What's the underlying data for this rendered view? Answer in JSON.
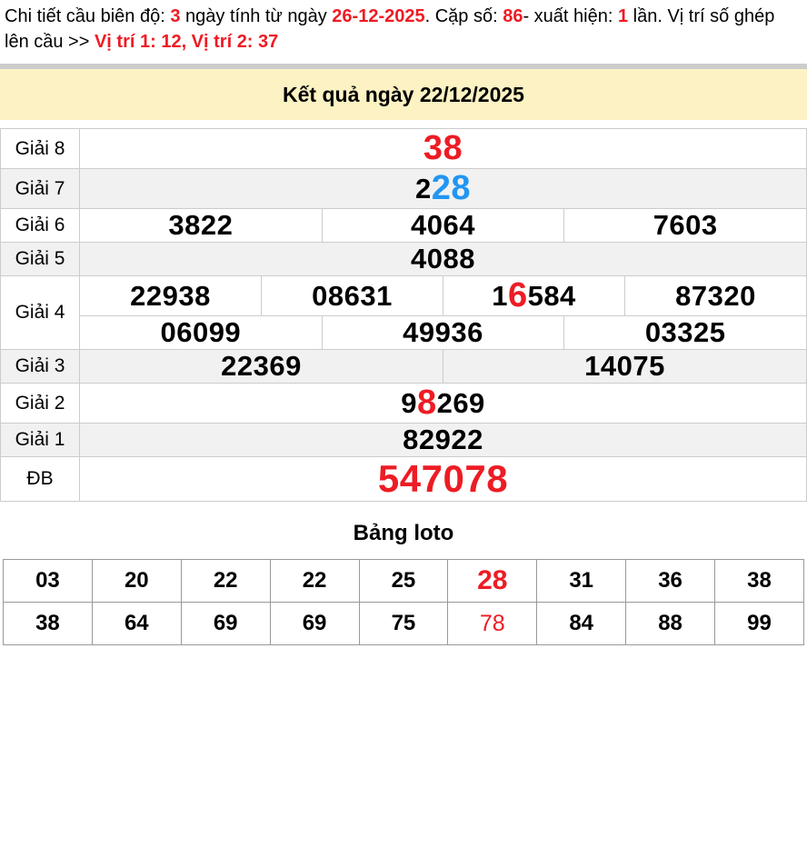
{
  "colors": {
    "red": "#ed1c24",
    "blue": "#2196f3",
    "header_bg": "#fdf2c3"
  },
  "header_note": {
    "parts": [
      {
        "text": "Chi tiết cầu biên độ: "
      },
      {
        "text": "3",
        "style": "red"
      },
      {
        "text": " ngày tính từ ngày "
      },
      {
        "text": "26-12-2025",
        "style": "red"
      },
      {
        "text": ". Cặp số: "
      },
      {
        "text": "86",
        "style": "red"
      },
      {
        "text": "- xuất hiện: "
      },
      {
        "text": "1",
        "style": "red"
      },
      {
        "text": " lần. Vị trí số ghép lên cầu >> "
      },
      {
        "text": "Vị trí 1: 12, Vị trí 2: 37",
        "style": "red"
      }
    ]
  },
  "result_header": {
    "title": "Kết quả ngày 22/12/2025"
  },
  "results": {
    "rows": [
      {
        "key": "g8",
        "label": "Giải 8",
        "lines": [
          [
            [
              {
                "text": "38",
                "style": "red-big"
              }
            ]
          ]
        ]
      },
      {
        "key": "g7",
        "label": "Giải 7",
        "lines": [
          [
            [
              {
                "text": "2"
              },
              {
                "text": "28",
                "style": "blue-big"
              }
            ]
          ]
        ]
      },
      {
        "key": "g6",
        "label": "Giải 6",
        "lines": [
          [
            [
              {
                "text": "3822"
              }
            ],
            [
              {
                "text": "4064"
              }
            ],
            [
              {
                "text": "7603"
              }
            ]
          ]
        ]
      },
      {
        "key": "g5",
        "label": "Giải 5",
        "lines": [
          [
            [
              {
                "text": "4088"
              }
            ]
          ]
        ]
      },
      {
        "key": "g4",
        "label": "Giải 4",
        "lines": [
          [
            [
              {
                "text": "22938"
              }
            ],
            [
              {
                "text": "08631"
              }
            ],
            [
              {
                "text": "1"
              },
              {
                "text": "6",
                "style": "red-big"
              },
              {
                "text": "584"
              }
            ],
            [
              {
                "text": "87320"
              }
            ]
          ],
          [
            [
              {
                "text": "06099"
              }
            ],
            [
              {
                "text": "49936"
              }
            ],
            [
              {
                "text": "03325"
              }
            ]
          ]
        ]
      },
      {
        "key": "g3",
        "label": "Giải 3",
        "lines": [
          [
            [
              {
                "text": "22369"
              }
            ],
            [
              {
                "text": "14075"
              }
            ]
          ]
        ]
      },
      {
        "key": "g2",
        "label": "Giải 2",
        "lines": [
          [
            [
              {
                "text": "9"
              },
              {
                "text": "8",
                "style": "red-big"
              },
              {
                "text": "269"
              }
            ]
          ]
        ]
      },
      {
        "key": "g1",
        "label": "Giải 1",
        "lines": [
          [
            [
              {
                "text": "82922"
              }
            ]
          ]
        ]
      },
      {
        "key": "db",
        "label": "ĐB",
        "lines": [
          [
            [
              {
                "text": "547078",
                "style": "red"
              }
            ]
          ]
        ]
      }
    ]
  },
  "loto": {
    "title": "Bảng loto",
    "rows": [
      [
        {
          "text": "03"
        },
        {
          "text": "20"
        },
        {
          "text": "22"
        },
        {
          "text": "22"
        },
        {
          "text": "25"
        },
        {
          "text": "28",
          "style": "red-big"
        },
        {
          "text": "31"
        },
        {
          "text": "36"
        },
        {
          "text": "38"
        }
      ],
      [
        {
          "text": "38"
        },
        {
          "text": "64"
        },
        {
          "text": "69"
        },
        {
          "text": "69"
        },
        {
          "text": "75"
        },
        {
          "text": "78",
          "style": "red"
        },
        {
          "text": "84"
        },
        {
          "text": "88"
        },
        {
          "text": "99"
        }
      ]
    ]
  }
}
